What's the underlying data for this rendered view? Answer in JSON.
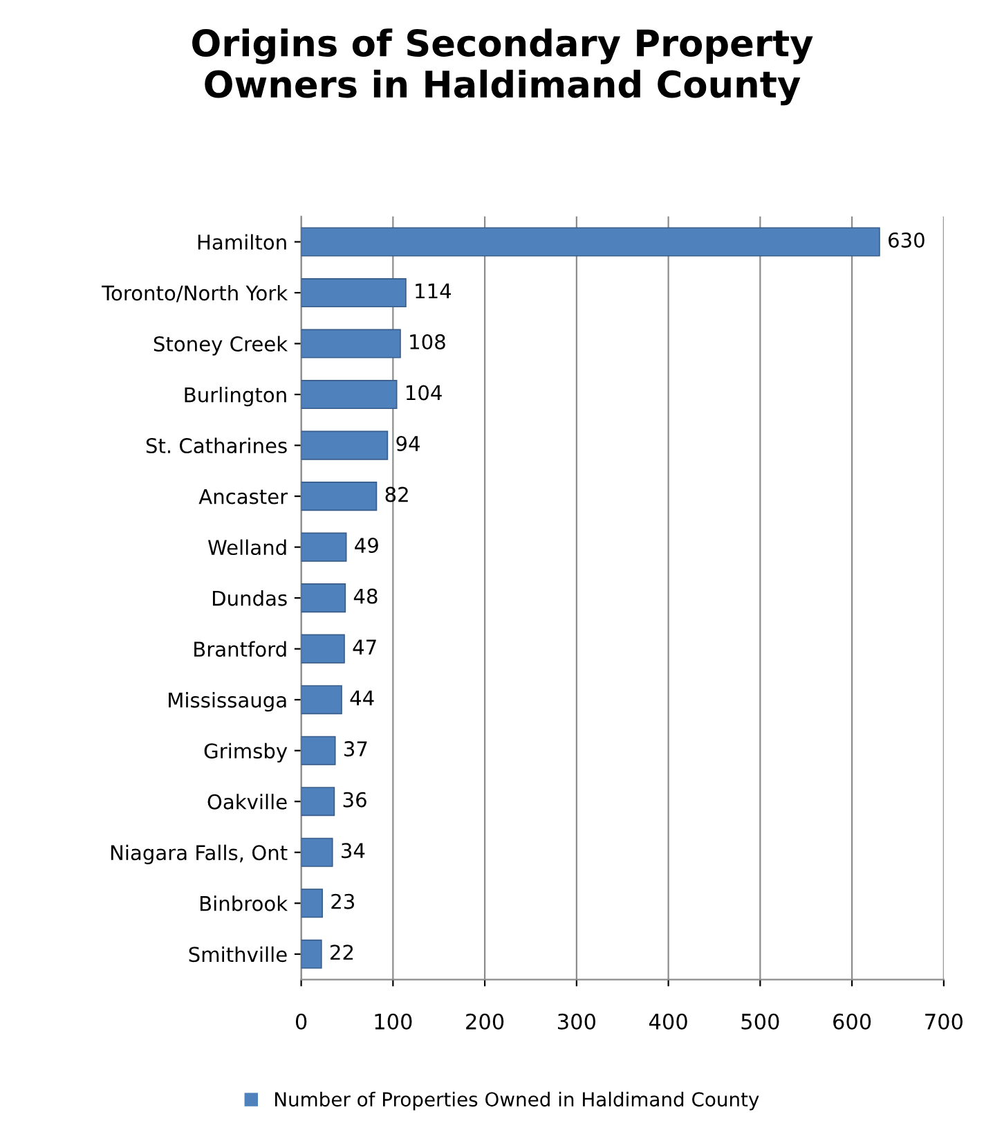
{
  "chart_data": {
    "type": "bar",
    "orientation": "horizontal",
    "title": "Origins of Secondary Property\nOwners in Haldimand County",
    "categories": [
      "Hamilton",
      "Toronto/North York",
      "Stoney Creek",
      "Burlington",
      "St. Catharines",
      "Ancaster",
      "Welland",
      "Dundas",
      "Brantford",
      "Mississauga",
      "Grimsby",
      "Oakville",
      "Niagara Falls, Ont",
      "Binbrook",
      "Smithville"
    ],
    "series": [
      {
        "name": "Number of Properties Owned in Haldimand County",
        "color": "#4f81bd",
        "values": [
          630,
          114,
          108,
          104,
          94,
          82,
          49,
          48,
          47,
          44,
          37,
          36,
          34,
          23,
          22
        ]
      }
    ],
    "xlim": [
      0,
      700
    ],
    "xticks": [
      0,
      100,
      200,
      300,
      400,
      500,
      600,
      700
    ],
    "grid": "x",
    "legend": "bottom",
    "data_labels": true
  }
}
